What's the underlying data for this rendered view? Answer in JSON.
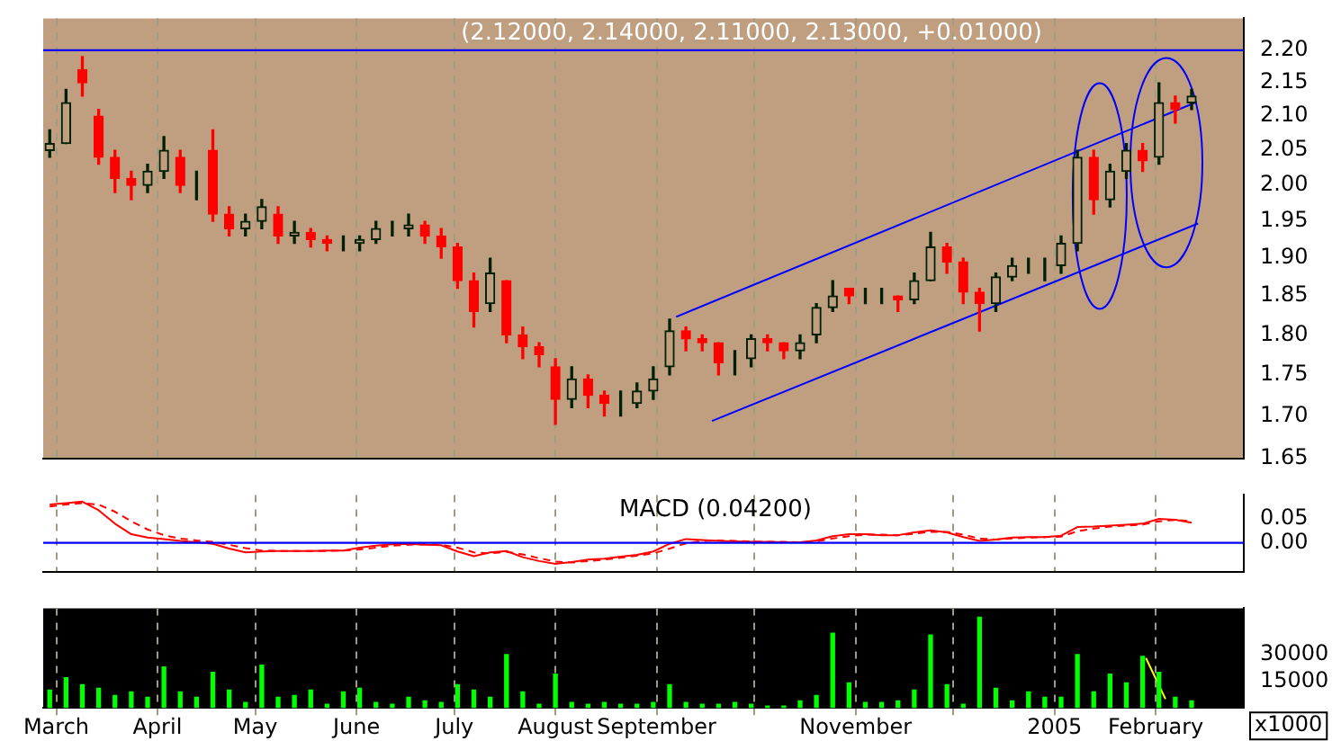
{
  "chart_data": [
    {
      "type": "candlestick",
      "title": "(2.12000, 2.14000, 2.11000, 2.13000, +0.01000)",
      "log": "y",
      "grid": "x",
      "tick_labels": "y",
      "x": [
        "2004-02-28",
        "2004-03-04",
        "2004-03-09",
        "2004-03-14",
        "2004-03-19",
        "2004-03-24",
        "2004-03-29",
        "2004-04-03",
        "2004-04-08",
        "2004-04-13",
        "2004-04-18",
        "2004-04-23",
        "2004-04-28",
        "2004-05-03",
        "2004-05-08",
        "2004-05-13",
        "2004-05-18",
        "2004-05-23",
        "2004-05-28",
        "2004-06-02",
        "2004-06-07",
        "2004-06-12",
        "2004-06-17",
        "2004-06-22",
        "2004-06-27",
        "2004-07-02",
        "2004-07-07",
        "2004-07-12",
        "2004-07-17",
        "2004-07-22",
        "2004-07-27",
        "2004-08-01",
        "2004-08-06",
        "2004-08-11",
        "2004-08-16",
        "2004-08-21",
        "2004-08-26",
        "2004-08-31",
        "2004-09-05",
        "2004-09-10",
        "2004-09-15",
        "2004-09-20",
        "2004-09-25",
        "2004-09-30",
        "2004-10-05",
        "2004-10-10",
        "2004-10-15",
        "2004-10-20",
        "2004-10-25",
        "2004-10-30",
        "2004-11-04",
        "2004-11-09",
        "2004-11-14",
        "2004-11-19",
        "2004-11-24",
        "2004-11-29",
        "2004-12-04",
        "2004-12-09",
        "2004-12-14",
        "2004-12-19",
        "2004-12-24",
        "2004-12-29",
        "2005-01-03",
        "2005-01-08",
        "2005-01-13",
        "2005-01-18",
        "2005-01-23",
        "2005-01-28",
        "2005-02-02",
        "2005-02-07",
        "2005-02-12"
      ],
      "ohlc": [
        [
          2.05,
          2.08,
          2.04,
          2.06
        ],
        [
          2.06,
          2.14,
          2.06,
          2.12
        ],
        [
          2.17,
          2.19,
          2.13,
          2.15
        ],
        [
          2.1,
          2.11,
          2.03,
          2.04
        ],
        [
          2.04,
          2.05,
          1.99,
          2.01
        ],
        [
          2.01,
          2.02,
          1.98,
          2.0
        ],
        [
          2.0,
          2.03,
          1.99,
          2.02
        ],
        [
          2.02,
          2.07,
          2.01,
          2.05
        ],
        [
          2.04,
          2.05,
          1.99,
          2.0
        ],
        [
          2.0,
          2.02,
          1.98,
          2.0
        ],
        [
          2.05,
          2.08,
          1.95,
          1.96
        ],
        [
          1.96,
          1.97,
          1.93,
          1.94
        ],
        [
          1.94,
          1.96,
          1.93,
          1.95
        ],
        [
          1.95,
          1.98,
          1.94,
          1.97
        ],
        [
          1.96,
          1.97,
          1.92,
          1.93
        ],
        [
          1.93,
          1.95,
          1.92,
          1.935
        ],
        [
          1.935,
          1.94,
          1.915,
          1.925
        ],
        [
          1.925,
          1.93,
          1.91,
          1.92
        ],
        [
          1.92,
          1.93,
          1.91,
          1.92
        ],
        [
          1.92,
          1.93,
          1.91,
          1.925
        ],
        [
          1.925,
          1.95,
          1.92,
          1.94
        ],
        [
          1.94,
          1.95,
          1.93,
          1.94
        ],
        [
          1.94,
          1.96,
          1.93,
          1.945
        ],
        [
          1.945,
          1.95,
          1.92,
          1.93
        ],
        [
          1.93,
          1.94,
          1.9,
          1.915
        ],
        [
          1.915,
          1.92,
          1.86,
          1.87
        ],
        [
          1.87,
          1.88,
          1.81,
          1.83
        ],
        [
          1.84,
          1.9,
          1.83,
          1.88
        ],
        [
          1.87,
          1.87,
          1.79,
          1.8
        ],
        [
          1.8,
          1.81,
          1.77,
          1.785
        ],
        [
          1.785,
          1.79,
          1.76,
          1.775
        ],
        [
          1.76,
          1.77,
          1.69,
          1.72
        ],
        [
          1.72,
          1.76,
          1.71,
          1.745
        ],
        [
          1.745,
          1.75,
          1.71,
          1.725
        ],
        [
          1.725,
          1.73,
          1.7,
          1.715
        ],
        [
          1.715,
          1.73,
          1.7,
          1.715
        ],
        [
          1.715,
          1.74,
          1.71,
          1.73
        ],
        [
          1.73,
          1.76,
          1.72,
          1.745
        ],
        [
          1.76,
          1.82,
          1.75,
          1.805
        ],
        [
          1.805,
          1.81,
          1.78,
          1.795
        ],
        [
          1.795,
          1.8,
          1.78,
          1.79
        ],
        [
          1.79,
          1.79,
          1.75,
          1.765
        ],
        [
          1.765,
          1.78,
          1.75,
          1.765
        ],
        [
          1.77,
          1.8,
          1.76,
          1.795
        ],
        [
          1.795,
          1.8,
          1.78,
          1.79
        ],
        [
          1.79,
          1.79,
          1.77,
          1.78
        ],
        [
          1.78,
          1.8,
          1.77,
          1.79
        ],
        [
          1.8,
          1.84,
          1.79,
          1.835
        ],
        [
          1.835,
          1.87,
          1.83,
          1.85
        ],
        [
          1.86,
          1.86,
          1.84,
          1.85
        ],
        [
          1.85,
          1.86,
          1.84,
          1.85
        ],
        [
          1.85,
          1.86,
          1.84,
          1.85
        ],
        [
          1.85,
          1.85,
          1.83,
          1.845
        ],
        [
          1.845,
          1.88,
          1.84,
          1.87
        ],
        [
          1.87,
          1.935,
          1.87,
          1.915
        ],
        [
          1.915,
          1.92,
          1.88,
          1.895
        ],
        [
          1.895,
          1.9,
          1.84,
          1.855
        ],
        [
          1.855,
          1.86,
          1.805,
          1.84
        ],
        [
          1.84,
          1.88,
          1.83,
          1.875
        ],
        [
          1.875,
          1.9,
          1.87,
          1.89
        ],
        [
          1.89,
          1.9,
          1.88,
          1.89
        ],
        [
          1.89,
          1.9,
          1.87,
          1.89
        ],
        [
          1.89,
          1.93,
          1.88,
          1.92
        ],
        [
          1.92,
          2.05,
          1.91,
          2.04
        ],
        [
          2.04,
          2.05,
          1.96,
          1.98
        ],
        [
          1.98,
          2.03,
          1.97,
          2.02
        ],
        [
          2.02,
          2.06,
          2.01,
          2.05
        ],
        [
          2.05,
          2.06,
          2.02,
          2.035
        ],
        [
          2.04,
          2.15,
          2.03,
          2.12
        ],
        [
          2.12,
          2.13,
          2.09,
          2.11
        ],
        [
          2.12,
          2.14,
          2.11,
          2.13
        ]
      ],
      "series": [
        {
          "type": "line",
          "x": [
            "2004-09-07",
            "2005-02-13"
          ],
          "values": [
            1.823,
            2.12
          ],
          "color": "#0000ff"
        },
        {
          "type": "line",
          "x": [
            "2004-09-18",
            "2005-02-14"
          ],
          "values": [
            1.694,
            1.947
          ],
          "color": "#0000ff"
        }
      ],
      "ref_lines": [
        {
          "axis": "y",
          "value": 2.2,
          "color": "#0000ff"
        }
      ],
      "xlim": [
        "2004-02-26",
        "2005-02-28"
      ],
      "xticks": [
        {
          "value": "2004-03-01",
          "label": null
        },
        {
          "value": "2004-04-01",
          "label": null
        },
        {
          "value": "2004-05-01",
          "label": null
        },
        {
          "value": "2004-06-01",
          "label": null
        },
        {
          "value": "2004-07-01",
          "label": null
        },
        {
          "value": "2004-08-01",
          "label": null
        },
        {
          "value": "2004-09-01",
          "label": null
        },
        {
          "value": "2004-10-01",
          "label": null
        },
        {
          "value": "2004-11-01",
          "label": null
        },
        {
          "value": "2004-12-01",
          "label": null
        },
        {
          "value": "2005-01-01",
          "label": null
        },
        {
          "value": "2005-02-01",
          "label": null
        }
      ],
      "ylim": [
        1.65,
        2.25
      ],
      "yticks": [
        {
          "value": 1.65,
          "label": "1.65"
        },
        {
          "value": 1.7,
          "label": "1.70"
        },
        {
          "value": 1.75,
          "label": "1.75"
        },
        {
          "value": 1.8,
          "label": "1.80"
        },
        {
          "value": 1.85,
          "label": "1.85"
        },
        {
          "value": 1.9,
          "label": "1.90"
        },
        {
          "value": 1.95,
          "label": "1.95"
        },
        {
          "value": 2,
          "label": "2.00"
        },
        {
          "value": 2.05,
          "label": "2.05"
        },
        {
          "value": 2.1,
          "label": "2.10"
        },
        {
          "value": 2.15,
          "label": "2.15"
        },
        {
          "value": 2.2,
          "label": "2.20"
        }
      ]
    },
    {
      "type": "line",
      "title": "MACD (0.04200)",
      "grid": "x",
      "tick_labels": "y",
      "x": [
        "2004-02-28",
        "2004-03-04",
        "2004-03-09",
        "2004-03-14",
        "2004-03-19",
        "2004-03-24",
        "2004-03-29",
        "2004-04-03",
        "2004-04-08",
        "2004-04-13",
        "2004-04-18",
        "2004-04-23",
        "2004-04-28",
        "2004-05-03",
        "2004-05-08",
        "2004-05-13",
        "2004-05-18",
        "2004-05-23",
        "2004-05-28",
        "2004-06-02",
        "2004-06-07",
        "2004-06-12",
        "2004-06-17",
        "2004-06-22",
        "2004-06-27",
        "2004-07-02",
        "2004-07-07",
        "2004-07-12",
        "2004-07-17",
        "2004-07-22",
        "2004-07-27",
        "2004-08-01",
        "2004-08-06",
        "2004-08-11",
        "2004-08-16",
        "2004-08-21",
        "2004-08-26",
        "2004-08-31",
        "2004-09-05",
        "2004-09-10",
        "2004-09-15",
        "2004-09-20",
        "2004-09-25",
        "2004-09-30",
        "2004-10-05",
        "2004-10-10",
        "2004-10-15",
        "2004-10-20",
        "2004-10-25",
        "2004-10-30",
        "2004-11-04",
        "2004-11-09",
        "2004-11-14",
        "2004-11-19",
        "2004-11-24",
        "2004-11-29",
        "2004-12-04",
        "2004-12-09",
        "2004-12-14",
        "2004-12-19",
        "2004-12-24",
        "2004-12-29",
        "2005-01-03",
        "2005-01-08",
        "2005-01-13",
        "2005-01-18",
        "2005-01-23",
        "2005-01-28",
        "2005-02-02",
        "2005-02-07",
        "2005-02-12"
      ],
      "series": [
        {
          "color": "#ff0000",
          "values": [
            0.08,
            0.083,
            0.086,
            0.068,
            0.04,
            0.018,
            0.011,
            0.008,
            0.004,
            0.001,
            -0.002,
            -0.012,
            -0.02,
            -0.018,
            -0.017,
            -0.017,
            -0.017,
            -0.016,
            -0.016,
            -0.01,
            -0.006,
            -0.003,
            -0.002,
            -0.004,
            -0.005,
            -0.018,
            -0.028,
            -0.02,
            -0.017,
            -0.03,
            -0.038,
            -0.044,
            -0.04,
            -0.035,
            -0.033,
            -0.029,
            -0.025,
            -0.018,
            -0.002,
            0.008,
            0.006,
            0.004,
            0.003,
            0.002,
            0.002,
            0.001,
            0.001,
            0.005,
            0.014,
            0.018,
            0.018,
            0.016,
            0.016,
            0.022,
            0.026,
            0.022,
            0.012,
            0.004,
            0.007,
            0.011,
            0.012,
            0.012,
            0.015,
            0.033,
            0.034,
            0.036,
            0.038,
            0.04,
            0.05,
            0.048,
            0.042
          ]
        },
        {
          "color": "#ff0000",
          "line_style": "dashed",
          "values": [
            0.076,
            0.08,
            0.083,
            0.08,
            0.065,
            0.045,
            0.028,
            0.016,
            0.009,
            0.005,
            0.002,
            -0.004,
            -0.011,
            -0.016,
            -0.017,
            -0.017,
            -0.017,
            -0.017,
            -0.016,
            -0.014,
            -0.01,
            -0.006,
            -0.004,
            -0.003,
            -0.004,
            -0.01,
            -0.02,
            -0.022,
            -0.019,
            -0.024,
            -0.032,
            -0.039,
            -0.041,
            -0.038,
            -0.035,
            -0.031,
            -0.027,
            -0.022,
            -0.012,
            -0.001,
            0.004,
            0.005,
            0.004,
            0.003,
            0.002,
            0.002,
            0.001,
            0.003,
            0.009,
            0.014,
            0.017,
            0.017,
            0.016,
            0.019,
            0.023,
            0.023,
            0.017,
            0.009,
            0.007,
            0.009,
            0.011,
            0.012,
            0.013,
            0.024,
            0.03,
            0.034,
            0.036,
            0.038,
            0.045,
            0.048,
            0.045
          ]
        }
      ],
      "ref_lines": [
        {
          "axis": "y",
          "value": 0,
          "color": "#0000ff"
        }
      ],
      "xlim": [
        "2004-02-26",
        "2005-02-28"
      ],
      "xticks": [
        {
          "value": "2004-03-01",
          "label": null
        },
        {
          "value": "2004-04-01",
          "label": null
        },
        {
          "value": "2004-05-01",
          "label": null
        },
        {
          "value": "2004-06-01",
          "label": null
        },
        {
          "value": "2004-07-01",
          "label": null
        },
        {
          "value": "2004-08-01",
          "label": null
        },
        {
          "value": "2004-09-01",
          "label": null
        },
        {
          "value": "2004-10-01",
          "label": null
        },
        {
          "value": "2004-11-01",
          "label": null
        },
        {
          "value": "2004-12-01",
          "label": null
        },
        {
          "value": "2005-01-01",
          "label": null
        },
        {
          "value": "2005-02-01",
          "label": null
        }
      ],
      "ylim": [
        -0.06,
        0.1
      ],
      "yticks": [
        {
          "value": 0,
          "label": "0.00"
        },
        {
          "value": 0.05,
          "label": "0.05"
        }
      ]
    },
    {
      "type": "bar",
      "grid": "x",
      "annotations": [
        "x1000"
      ],
      "x": [
        "2004-02-28",
        "2004-03-04",
        "2004-03-09",
        "2004-03-14",
        "2004-03-19",
        "2004-03-24",
        "2004-03-29",
        "2004-04-03",
        "2004-04-08",
        "2004-04-13",
        "2004-04-18",
        "2004-04-23",
        "2004-04-28",
        "2004-05-03",
        "2004-05-08",
        "2004-05-13",
        "2004-05-18",
        "2004-05-23",
        "2004-05-28",
        "2004-06-02",
        "2004-06-07",
        "2004-06-12",
        "2004-06-17",
        "2004-06-22",
        "2004-06-27",
        "2004-07-02",
        "2004-07-07",
        "2004-07-12",
        "2004-07-17",
        "2004-07-22",
        "2004-07-27",
        "2004-08-01",
        "2004-08-06",
        "2004-08-11",
        "2004-08-16",
        "2004-08-21",
        "2004-08-26",
        "2004-08-31",
        "2004-09-05",
        "2004-09-10",
        "2004-09-15",
        "2004-09-20",
        "2004-09-25",
        "2004-09-30",
        "2004-10-05",
        "2004-10-10",
        "2004-10-15",
        "2004-10-20",
        "2004-10-25",
        "2004-10-30",
        "2004-11-04",
        "2004-11-09",
        "2004-11-14",
        "2004-11-19",
        "2004-11-24",
        "2004-11-29",
        "2004-12-04",
        "2004-12-09",
        "2004-12-14",
        "2004-12-19",
        "2004-12-24",
        "2004-12-29",
        "2005-01-03",
        "2005-01-08",
        "2005-01-13",
        "2005-01-18",
        "2005-01-23",
        "2005-01-28",
        "2005-02-02",
        "2005-02-07",
        "2005-02-12"
      ],
      "series": [
        {
          "color": "#00ff00",
          "values": [
            10000,
            17000,
            13000,
            11000,
            7000,
            9000,
            6000,
            23000,
            9000,
            6000,
            20000,
            10000,
            3000,
            24000,
            6000,
            7000,
            10000,
            2000,
            9000,
            11000,
            3000,
            2000,
            6000,
            4000,
            3000,
            13000,
            10000,
            6000,
            30000,
            9000,
            2000,
            19000,
            3000,
            2000,
            3000,
            2000,
            2000,
            3000,
            13000,
            3000,
            2000,
            2000,
            3000,
            2000,
            1000,
            1000,
            4000,
            7000,
            42000,
            14000,
            3000,
            3000,
            4000,
            10000,
            41000,
            13000,
            2000,
            51000,
            11000,
            4000,
            9000,
            6000,
            6000,
            30000,
            9000,
            19000,
            14000,
            29000,
            20000,
            6000,
            4000
          ]
        },
        {
          "type": "line",
          "x": [
            "2005-01-29",
            "2005-02-04"
          ],
          "values": [
            28000,
            5000
          ],
          "color": "#ffff00"
        }
      ],
      "xlim": [
        "2004-02-26",
        "2005-02-28"
      ],
      "xticks": [
        {
          "value": "2004-03-01",
          "label": "March"
        },
        {
          "value": "2004-04-01",
          "label": "April"
        },
        {
          "value": "2004-05-01",
          "label": "May"
        },
        {
          "value": "2004-06-01",
          "label": "June"
        },
        {
          "value": "2004-07-01",
          "label": "July"
        },
        {
          "value": "2004-08-01",
          "label": "August"
        },
        {
          "value": "2004-09-01",
          "label": "September"
        },
        {
          "value": "2004-10-01",
          "label": null
        },
        {
          "value": "2004-11-01",
          "label": "November"
        },
        {
          "value": "2004-12-01",
          "label": null
        },
        {
          "value": "2005-01-01",
          "label": "2005"
        },
        {
          "value": "2005-02-01",
          "label": "February"
        }
      ],
      "ylim": [
        0,
        56000
      ],
      "yticks": [
        15000,
        30000
      ]
    }
  ]
}
